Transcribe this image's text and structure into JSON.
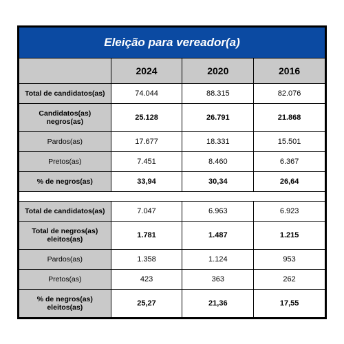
{
  "title": "Eleição para vereador(a)",
  "columns": [
    "",
    "2024",
    "2020",
    "2016"
  ],
  "colors": {
    "title_bg": "#0b4aa2",
    "title_fg": "#ffffff",
    "header_bg": "#c9c9c9",
    "label_bg": "#c9c9c9",
    "data_bg": "#ffffff",
    "border": "#000000"
  },
  "section1": {
    "rows": [
      {
        "label": "Total de candidatos(as)",
        "bold_label": true,
        "bold_data": false,
        "cells": [
          "74.044",
          "88.315",
          "82.076"
        ]
      },
      {
        "label": "Candidatos(as) negros(as)",
        "bold_label": true,
        "bold_data": true,
        "cells": [
          "25.128",
          "26.791",
          "21.868"
        ]
      },
      {
        "label": "Pardos(as)",
        "bold_label": false,
        "bold_data": false,
        "cells": [
          "17.677",
          "18.331",
          "15.501"
        ]
      },
      {
        "label": "Pretos(as)",
        "bold_label": false,
        "bold_data": false,
        "cells": [
          "7.451",
          "8.460",
          "6.367"
        ]
      },
      {
        "label": "% de negros(as)",
        "bold_label": true,
        "bold_data": true,
        "cells": [
          "33,94",
          "30,34",
          "26,64"
        ]
      }
    ]
  },
  "section2": {
    "rows": [
      {
        "label": "Total de candidatos(as)",
        "bold_label": true,
        "bold_data": false,
        "cells": [
          "7.047",
          "6.963",
          "6.923"
        ]
      },
      {
        "label": "Total de negros(as) eleitos(as)",
        "bold_label": true,
        "bold_data": true,
        "cells": [
          "1.781",
          "1.487",
          "1.215"
        ]
      },
      {
        "label": "Pardos(as)",
        "bold_label": false,
        "bold_data": false,
        "cells": [
          "1.358",
          "1.124",
          "953"
        ]
      },
      {
        "label": "Pretos(as)",
        "bold_label": false,
        "bold_data": false,
        "cells": [
          "423",
          "363",
          "262"
        ]
      },
      {
        "label": "% de negros(as) eleitos(as)",
        "bold_label": true,
        "bold_data": true,
        "cells": [
          "25,27",
          "21,36",
          "17,55"
        ]
      }
    ]
  }
}
